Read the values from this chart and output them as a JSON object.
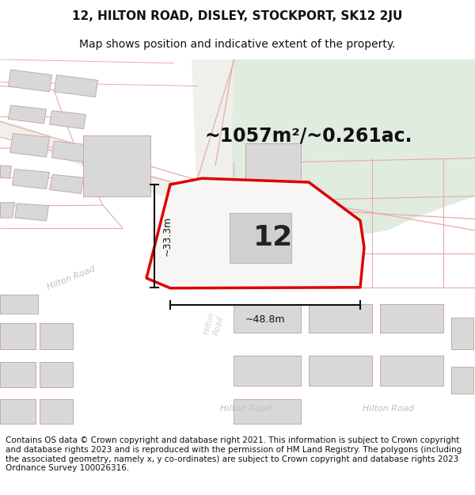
{
  "title_line1": "12, HILTON ROAD, DISLEY, STOCKPORT, SK12 2JU",
  "title_line2": "Map shows position and indicative extent of the property.",
  "area_text": "~1057m²/~0.261ac.",
  "label_number": "12",
  "dim_vertical": "~33.3m",
  "dim_horizontal": "~48.8m",
  "footer_text": "Contains OS data © Crown copyright and database right 2021. This information is subject to Crown copyright and database rights 2023 and is reproduced with the permission of HM Land Registry. The polygons (including the associated geometry, namely x, y co-ordinates) are subject to Crown copyright and database rights 2023 Ordnance Survey 100026316.",
  "bg_color": "#ffffff",
  "map_bg": "#f7f7f2",
  "green_area_color": "#e0ece0",
  "road_surface_color": "#f0f0eb",
  "building_fill": "#d8d8d8",
  "building_edge": "#c8a8a8",
  "plot_outline_color": "#dd0000",
  "dim_line_color": "#111111",
  "road_line_color": "#e8aaaa",
  "road_center_color": "#d0d0cc",
  "title_fontsize": 11,
  "subtitle_fontsize": 10,
  "footer_fontsize": 7.5,
  "road_label_color": "#aaaaaa",
  "hilton_road_color": "#c0bfbc"
}
